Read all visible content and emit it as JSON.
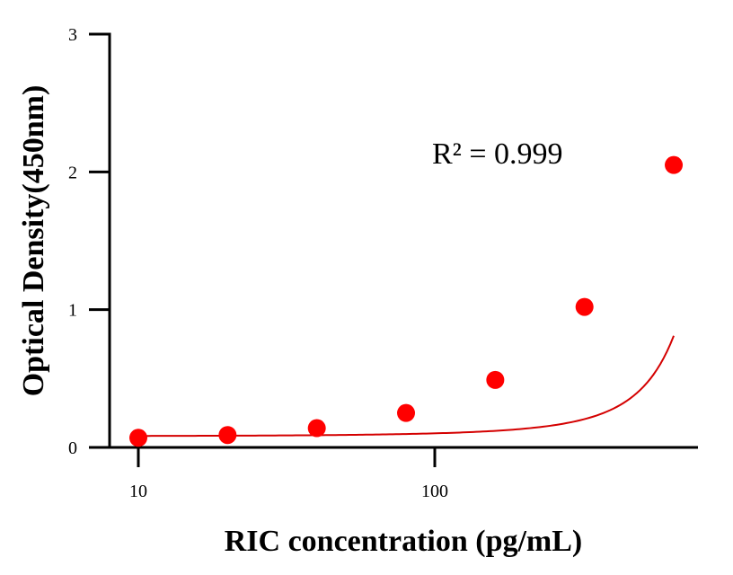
{
  "chart_data": {
    "type": "scatter",
    "xscale": "log",
    "x": [
      10,
      20,
      40,
      80,
      160,
      320,
      640
    ],
    "y": [
      0.07,
      0.09,
      0.14,
      0.25,
      0.49,
      1.02,
      2.05
    ],
    "xlim": [
      7.5,
      800
    ],
    "ylim": [
      0,
      3
    ],
    "xticks": [
      10,
      100
    ],
    "xtick_labels": [
      "10",
      "100"
    ],
    "yticks": [
      0,
      1,
      2,
      3
    ],
    "ytick_labels": [
      "0",
      "1",
      "2",
      "3"
    ],
    "xlabel": "RIC concentration (pg/mL)",
    "ylabel": "Optical Density(450nm)",
    "annotation": "R² = 0.999",
    "fit": {
      "type": "exponential",
      "intercept": 0.05,
      "amplitude": 0.0318,
      "rate": 0.00496
    },
    "marker_color": "#ff0000",
    "line_color": "#d40000",
    "grid": false
  }
}
